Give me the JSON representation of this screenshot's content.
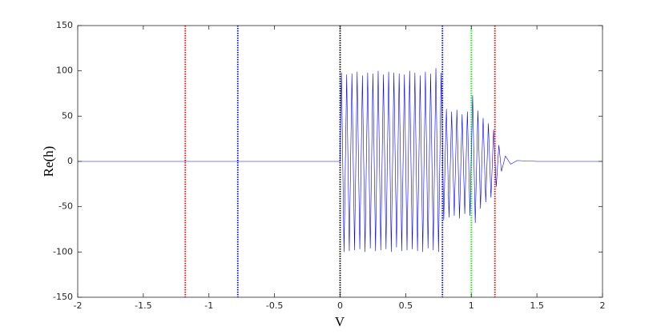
{
  "chart_data": {
    "type": "line",
    "xlabel": "V",
    "ylabel": "Re(h)",
    "xlim": [
      -2,
      2
    ],
    "ylim": [
      -150,
      150
    ],
    "xticks": [
      -2,
      -1.5,
      -1,
      -0.5,
      0,
      0.5,
      1,
      1.5,
      2
    ],
    "yticks": [
      -150,
      -100,
      -50,
      0,
      50,
      100,
      150
    ],
    "x": [
      -2,
      -1.5,
      -1,
      -0.5,
      0,
      0.01,
      0.03,
      0.05,
      0.07,
      0.09,
      0.11,
      0.13,
      0.15,
      0.17,
      0.19,
      0.21,
      0.23,
      0.25,
      0.27,
      0.29,
      0.31,
      0.33,
      0.35,
      0.37,
      0.39,
      0.41,
      0.43,
      0.45,
      0.47,
      0.49,
      0.51,
      0.53,
      0.55,
      0.57,
      0.59,
      0.61,
      0.63,
      0.65,
      0.67,
      0.69,
      0.71,
      0.73,
      0.75,
      0.77,
      0.79,
      0.81,
      0.83,
      0.85,
      0.87,
      0.89,
      0.91,
      0.93,
      0.95,
      0.97,
      0.99,
      1.01,
      1.03,
      1.05,
      1.07,
      1.09,
      1.11,
      1.13,
      1.15,
      1.17,
      1.19,
      1.21,
      1.23,
      1.26,
      1.3,
      1.35,
      1.5,
      2
    ],
    "series": [
      {
        "color": "#0000ff",
        "values": [
          0,
          0,
          0,
          0,
          0,
          98,
          -100,
          96,
          -99,
          97,
          -98,
          99,
          -97,
          95,
          -100,
          98,
          -96,
          97,
          -99,
          100,
          -98,
          96,
          -97,
          99,
          -100,
          98,
          -95,
          97,
          -99,
          96,
          -98,
          100,
          -97,
          98,
          -99,
          95,
          -100,
          99,
          -96,
          97,
          -98,
          103,
          -100,
          98,
          -65,
          58,
          -62,
          55,
          -60,
          57,
          -63,
          52,
          -58,
          55,
          -60,
          73,
          -68,
          56,
          -52,
          48,
          -45,
          42,
          -40,
          35,
          -28,
          18,
          -11,
          6,
          -3,
          1,
          0,
          0
        ]
      }
    ],
    "vlines": [
      {
        "x": -1.18,
        "color": "#ff0000"
      },
      {
        "x": -0.78,
        "color": "#0000ff"
      },
      {
        "x": 0,
        "color": "#000000"
      },
      {
        "x": 0.78,
        "color": "#0000ff"
      },
      {
        "x": 1,
        "color": "#00ff00"
      },
      {
        "x": 1.18,
        "color": "#ff0000"
      }
    ]
  }
}
